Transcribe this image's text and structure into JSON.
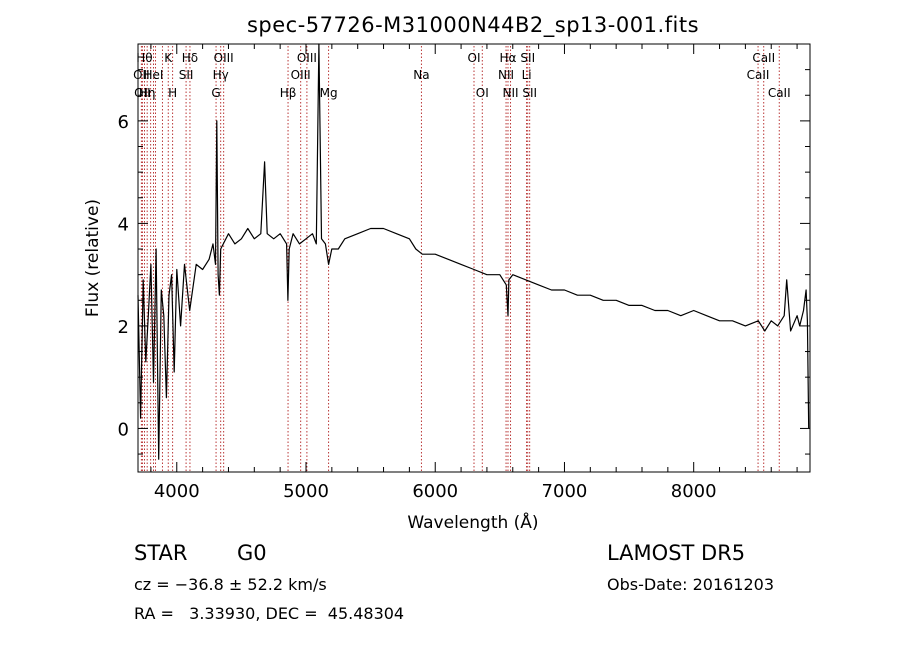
{
  "chart_data": {
    "type": "line",
    "title": "spec-57726-M31000N44B2_sp13-001.fits",
    "xlabel": "Wavelength (Å)",
    "ylabel": "Flux (relative)",
    "xlim": [
      3700,
      8900
    ],
    "ylim": [
      -0.85,
      7.5
    ],
    "x_ticks": [
      4000,
      5000,
      6000,
      7000,
      8000
    ],
    "x_tick_labels": [
      "4000",
      "5000",
      "6000",
      "7000",
      "8000"
    ],
    "y_ticks": [
      0,
      2,
      4,
      6
    ],
    "y_tick_labels": [
      "0",
      "2",
      "4",
      "6"
    ],
    "grid": false,
    "series": [
      {
        "x": [
          3700,
          3720,
          3740,
          3760,
          3780,
          3800,
          3820,
          3840,
          3860,
          3880,
          3900,
          3920,
          3940,
          3960,
          3980,
          4000,
          4030,
          4060,
          4100,
          4150,
          4200,
          4250,
          4280,
          4300,
          4310,
          4320,
          4330,
          4340,
          4360,
          4400,
          4450,
          4500,
          4550,
          4600,
          4650,
          4680,
          4700,
          4750,
          4800,
          4850,
          4860,
          4870,
          4900,
          4950,
          5000,
          5050,
          5080,
          5100,
          5120,
          5150,
          5175,
          5200,
          5250,
          5300,
          5400,
          5500,
          5600,
          5700,
          5800,
          5850,
          5900,
          6000,
          6100,
          6200,
          6300,
          6400,
          6500,
          6550,
          6563,
          6570,
          6600,
          6700,
          6800,
          6900,
          7000,
          7100,
          7200,
          7300,
          7400,
          7500,
          7600,
          7700,
          7800,
          7900,
          8000,
          8100,
          8200,
          8300,
          8400,
          8500,
          8550,
          8600,
          8650,
          8700,
          8720,
          8750,
          8800,
          8820,
          8850,
          8870,
          8880,
          8890
        ],
        "y": [
          2.6,
          0.2,
          2.9,
          1.3,
          2.2,
          3.2,
          0.9,
          3.5,
          -0.6,
          2.7,
          2.2,
          0.6,
          2.6,
          3.0,
          1.1,
          3.1,
          2.0,
          3.2,
          2.3,
          3.2,
          3.1,
          3.3,
          3.6,
          3.2,
          6.0,
          3.0,
          2.6,
          3.5,
          3.6,
          3.8,
          3.6,
          3.7,
          3.9,
          3.7,
          3.8,
          5.2,
          3.8,
          3.7,
          3.8,
          3.6,
          2.5,
          3.5,
          3.8,
          3.6,
          3.7,
          3.8,
          3.6,
          7.5,
          3.7,
          3.6,
          3.2,
          3.5,
          3.5,
          3.7,
          3.8,
          3.9,
          3.9,
          3.8,
          3.7,
          3.5,
          3.4,
          3.4,
          3.3,
          3.2,
          3.1,
          3.0,
          3.0,
          2.8,
          2.2,
          2.9,
          3.0,
          2.9,
          2.8,
          2.7,
          2.7,
          2.6,
          2.6,
          2.5,
          2.5,
          2.4,
          2.4,
          2.3,
          2.3,
          2.2,
          2.3,
          2.2,
          2.1,
          2.1,
          2.0,
          2.1,
          1.9,
          2.1,
          2.0,
          2.2,
          2.9,
          1.9,
          2.2,
          2.0,
          2.3,
          2.7,
          2.1,
          0.0
        ]
      }
    ],
    "lines": [
      {
        "wl": 3726,
        "label": "OII",
        "row": 2
      },
      {
        "wl": 3734,
        "label": "OII",
        "row": 3
      },
      {
        "wl": 3750,
        "label": "Hθ",
        "row": 1
      },
      {
        "wl": 3771,
        "label": "Hη",
        "row": 3
      },
      {
        "wl": 3798,
        "label": "",
        "row": 0
      },
      {
        "wl": 3820,
        "label": "HeI",
        "row": 2
      },
      {
        "wl": 3835,
        "label": "",
        "row": 0
      },
      {
        "wl": 3889,
        "label": "",
        "row": 0
      },
      {
        "wl": 3934,
        "label": "K",
        "row": 1
      },
      {
        "wl": 3968,
        "label": "H",
        "row": 3
      },
      {
        "wl": 4072,
        "label": "SII",
        "row": 2
      },
      {
        "wl": 4102,
        "label": "Hδ",
        "row": 1
      },
      {
        "wl": 4304,
        "label": "G",
        "row": 3
      },
      {
        "wl": 4340,
        "label": "Hγ",
        "row": 2
      },
      {
        "wl": 4363,
        "label": "OIII",
        "row": 1
      },
      {
        "wl": 4861,
        "label": "Hβ",
        "row": 3
      },
      {
        "wl": 4959,
        "label": "OIII",
        "row": 2
      },
      {
        "wl": 5007,
        "label": "OIII",
        "row": 1
      },
      {
        "wl": 5175,
        "label": "Mg",
        "row": 3
      },
      {
        "wl": 5893,
        "label": "Na",
        "row": 2
      },
      {
        "wl": 6300,
        "label": "OI",
        "row": 1
      },
      {
        "wl": 6364,
        "label": "OI",
        "row": 3
      },
      {
        "wl": 6548,
        "label": "NII",
        "row": 2
      },
      {
        "wl": 6563,
        "label": "Hα",
        "row": 1
      },
      {
        "wl": 6583,
        "label": "NII",
        "row": 3
      },
      {
        "wl": 6707,
        "label": "Li",
        "row": 2
      },
      {
        "wl": 6716,
        "label": "SII",
        "row": 1
      },
      {
        "wl": 6731,
        "label": "SII",
        "row": 3
      },
      {
        "wl": 8498,
        "label": "CaII",
        "row": 2
      },
      {
        "wl": 8542,
        "label": "CaII",
        "row": 1
      },
      {
        "wl": 8662,
        "label": "CaII",
        "row": 3
      }
    ]
  },
  "info": {
    "class_label": "STAR",
    "subclass": "G0",
    "redshift": "cz = −36.8 ± 52.2 km/s",
    "coords": "RA =   3.33930, DEC =  45.48304",
    "survey": "LAMOST DR5",
    "obs_date": "Obs-Date: 20161203"
  },
  "colors": {
    "spectrum": "#000000",
    "line_marker": "#b22222",
    "axis": "#000000"
  }
}
